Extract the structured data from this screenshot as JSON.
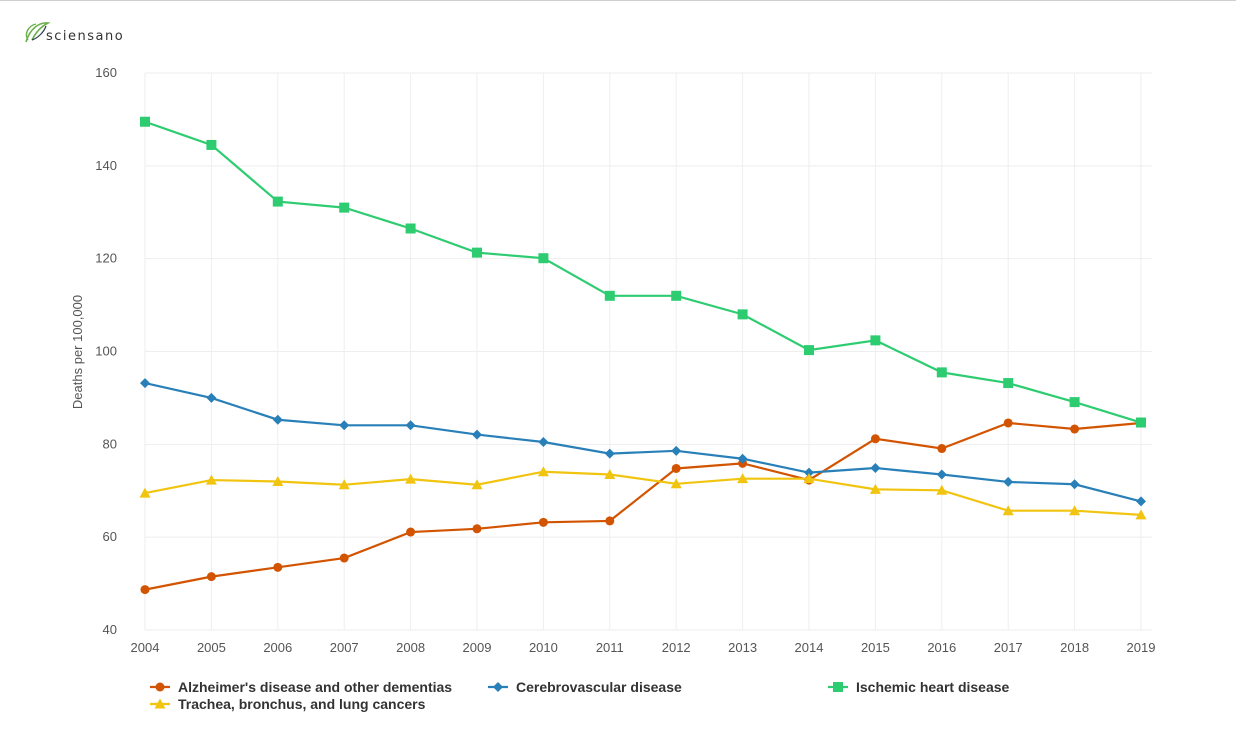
{
  "brand": {
    "name": "sciensano"
  },
  "colors": {
    "alzheimers": "#d35400",
    "cerebrovascular": "#2980b9",
    "ischemic": "#2ecc71",
    "trachea": "#f1c40f",
    "grid": "#eeeeee"
  },
  "chart_data": {
    "type": "line",
    "title": "",
    "xlabel": "",
    "ylabel": "Deaths per 100,000",
    "ylim": [
      40,
      160
    ],
    "yticks": [
      40,
      60,
      80,
      100,
      120,
      140,
      160
    ],
    "grid": true,
    "legend_position": "bottom",
    "x": [
      "2004",
      "2005",
      "2006",
      "2007",
      "2008",
      "2009",
      "2010",
      "2011",
      "2012",
      "2013",
      "2014",
      "2015",
      "2016",
      "2017",
      "2018",
      "2019"
    ],
    "series": [
      {
        "name": "Alzheimer's disease and other dementias",
        "color": "#d35400",
        "marker": "circle",
        "values": [
          48.7,
          51.5,
          53.5,
          55.5,
          61.1,
          61.8,
          63.2,
          63.5,
          74.8,
          75.9,
          72.3,
          81.2,
          79.1,
          84.6,
          83.3,
          84.6
        ]
      },
      {
        "name": "Cerebrovascular disease",
        "color": "#2980b9",
        "marker": "diamond",
        "values": [
          93.2,
          90.0,
          85.3,
          84.1,
          84.1,
          82.1,
          80.5,
          78.0,
          78.6,
          76.9,
          73.9,
          74.9,
          73.5,
          71.9,
          71.4,
          67.7
        ]
      },
      {
        "name": "Ischemic heart disease",
        "color": "#2ecc71",
        "marker": "square",
        "values": [
          149.5,
          144.5,
          132.3,
          131.0,
          126.5,
          121.3,
          120.1,
          112.0,
          112.0,
          108.0,
          100.3,
          102.4,
          95.5,
          93.2,
          89.1,
          84.7
        ]
      },
      {
        "name": "Trachea, bronchus, and lung cancers",
        "color": "#f1c40f",
        "marker": "triangle",
        "values": [
          69.5,
          72.3,
          72.0,
          71.3,
          72.5,
          71.3,
          74.1,
          73.5,
          71.5,
          72.6,
          72.6,
          70.3,
          70.1,
          65.7,
          65.7,
          64.8
        ]
      }
    ]
  }
}
